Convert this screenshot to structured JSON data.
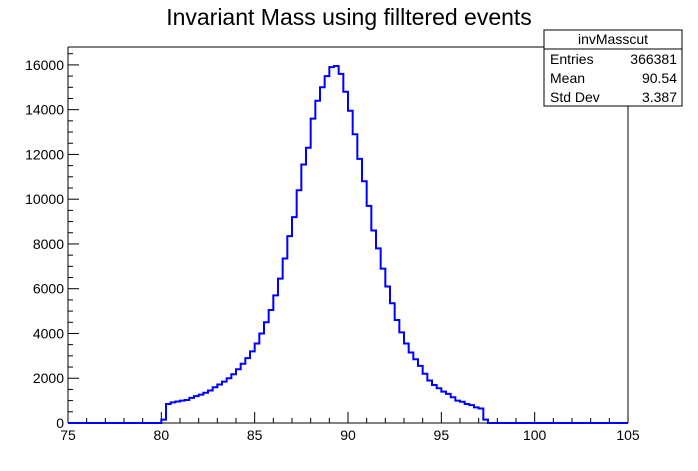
{
  "chart_data": {
    "type": "histogram",
    "title": "Invariant Mass using filltered events",
    "xlabel": "",
    "ylabel": "",
    "xlim": [
      75,
      105
    ],
    "ylim": [
      0,
      16800
    ],
    "xticks": [
      75,
      80,
      85,
      90,
      95,
      100,
      105
    ],
    "yticks": [
      0,
      2000,
      4000,
      6000,
      8000,
      10000,
      12000,
      14000,
      16000
    ],
    "xtick_labels": [
      "75",
      "80",
      "85",
      "90",
      "95",
      "100",
      "105"
    ],
    "ytick_labels": [
      "0",
      "2000",
      "4000",
      "6000",
      "8000",
      "10000",
      "12000",
      "14000",
      "16000"
    ],
    "bin_width": 0.25,
    "bin_start": 80,
    "bin_values": [
      150,
      850,
      920,
      960,
      1000,
      1030,
      1120,
      1200,
      1270,
      1350,
      1450,
      1600,
      1720,
      1850,
      2000,
      2180,
      2400,
      2650,
      2900,
      3200,
      3550,
      4000,
      4500,
      5050,
      5700,
      6450,
      7350,
      8350,
      9200,
      10400,
      11550,
      12300,
      13600,
      14400,
      15000,
      15500,
      15900,
      15950,
      15600,
      14800,
      13950,
      12900,
      11800,
      10800,
      9700,
      8600,
      7800,
      6900,
      6100,
      5350,
      4600,
      4050,
      3550,
      3150,
      2850,
      2550,
      2200,
      1900,
      1700,
      1550,
      1400,
      1300,
      1150,
      1000,
      950,
      850,
      800,
      700,
      650,
      150
    ],
    "line_color": "#0000ff",
    "grid": false,
    "stats_box": {
      "name": "invMasscut",
      "rows": [
        {
          "label": "Entries",
          "value": "366381"
        },
        {
          "label": "Mean",
          "value": "90.54"
        },
        {
          "label": "Std Dev",
          "value": "3.387"
        }
      ]
    }
  }
}
